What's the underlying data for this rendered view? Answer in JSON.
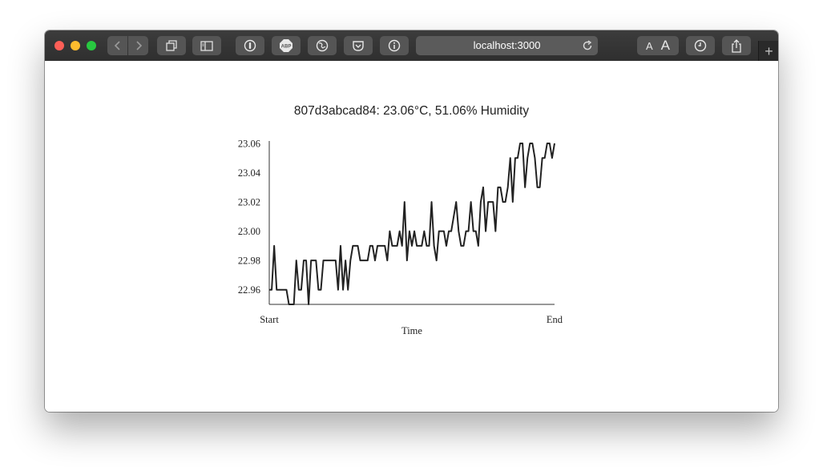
{
  "browser": {
    "url": "localhost:3000",
    "text_size_small": "A",
    "text_size_large": "A",
    "new_tab": "+"
  },
  "page": {
    "title": "807d3abcad84: 23.06°C, 51.06% Humidity"
  },
  "chart_data": {
    "type": "line",
    "title": "",
    "xlabel": "Time",
    "ylabel": "",
    "x_tick_labels": [
      "Start",
      "End"
    ],
    "ylim": [
      22.95,
      23.06
    ],
    "yticks": [
      "22.96",
      "22.98",
      "23.00",
      "23.02",
      "23.04",
      "23.06"
    ],
    "series": [
      {
        "color": "#222222",
        "values": [
          22.96,
          22.96,
          22.99,
          22.96,
          22.96,
          22.96,
          22.96,
          22.96,
          22.95,
          22.95,
          22.95,
          22.98,
          22.96,
          22.96,
          22.98,
          22.98,
          22.95,
          22.98,
          22.98,
          22.98,
          22.96,
          22.96,
          22.98,
          22.98,
          22.98,
          22.98,
          22.98,
          22.98,
          22.96,
          22.99,
          22.96,
          22.98,
          22.96,
          22.98,
          22.99,
          22.99,
          22.99,
          22.98,
          22.98,
          22.98,
          22.98,
          22.99,
          22.99,
          22.98,
          22.99,
          22.99,
          22.99,
          22.99,
          22.98,
          23.0,
          22.99,
          22.99,
          22.99,
          23.0,
          22.99,
          23.02,
          22.98,
          23.0,
          22.99,
          23.0,
          22.99,
          22.99,
          22.99,
          23.0,
          22.99,
          22.99,
          23.02,
          22.99,
          22.98,
          23.0,
          23.0,
          23.0,
          22.99,
          23.0,
          23.0,
          23.01,
          23.02,
          23.0,
          22.99,
          22.99,
          23.0,
          23.0,
          23.02,
          23.0,
          23.0,
          22.99,
          23.02,
          23.03,
          23.0,
          23.02,
          23.02,
          23.02,
          23.0,
          23.03,
          23.03,
          23.02,
          23.02,
          23.03,
          23.05,
          23.02,
          23.05,
          23.05,
          23.06,
          23.06,
          23.03,
          23.05,
          23.06,
          23.06,
          23.05,
          23.03,
          23.03,
          23.05,
          23.05,
          23.06,
          23.06,
          23.05,
          23.06
        ]
      }
    ]
  }
}
